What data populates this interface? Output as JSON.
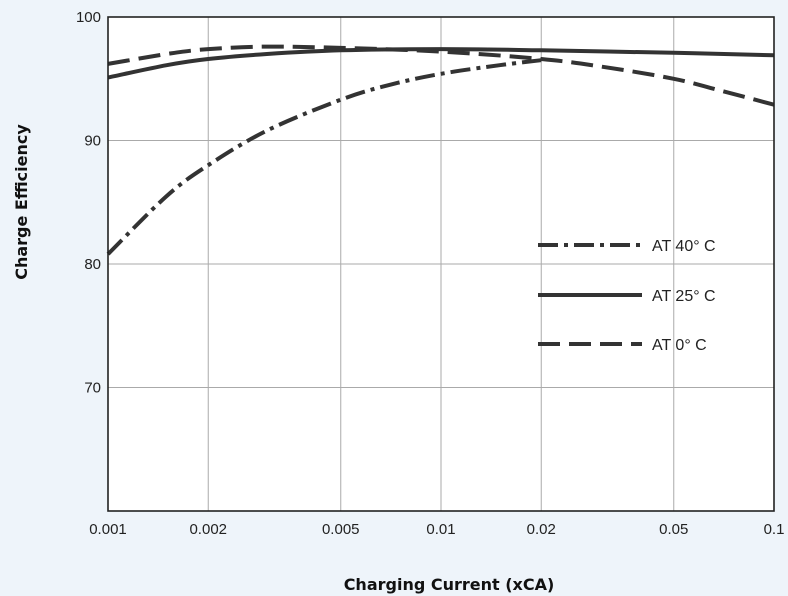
{
  "chart_data": {
    "type": "line",
    "title": "",
    "xlabel": "Charging Current (xCA)",
    "ylabel": "Charge Efficiency",
    "x_scale": "log",
    "xlim": [
      0.001,
      0.1
    ],
    "ylim": [
      60,
      100
    ],
    "x_ticks": [
      0.001,
      0.002,
      0.005,
      0.01,
      0.02,
      0.05,
      0.1
    ],
    "x_tick_labels": [
      "0.001",
      "0.002",
      "0.005",
      "0.01",
      "0.02",
      "0.05",
      "0.1"
    ],
    "y_ticks": [
      70,
      80,
      90,
      100
    ],
    "y_tick_labels": [
      "70",
      "80",
      "90",
      "100"
    ],
    "grid": true,
    "legend_position": "right",
    "series": [
      {
        "name": "AT 40° C",
        "dash": "dash-dot",
        "x": [
          0.001,
          0.0015,
          0.002,
          0.003,
          0.005,
          0.007,
          0.01,
          0.015,
          0.02
        ],
        "y": [
          80.8,
          85.5,
          88.0,
          90.8,
          93.3,
          94.5,
          95.4,
          96.1,
          96.5
        ]
      },
      {
        "name": "AT 25° C",
        "dash": "solid",
        "x": [
          0.001,
          0.0015,
          0.002,
          0.003,
          0.005,
          0.01,
          0.02,
          0.05,
          0.1
        ],
        "y": [
          95.1,
          96.1,
          96.6,
          97.0,
          97.3,
          97.4,
          97.3,
          97.1,
          96.9
        ]
      },
      {
        "name": "AT 0° C",
        "dash": "dashed",
        "x": [
          0.001,
          0.0015,
          0.002,
          0.003,
          0.005,
          0.01,
          0.02,
          0.03,
          0.05,
          0.07,
          0.1
        ],
        "y": [
          96.2,
          97.0,
          97.4,
          97.6,
          97.5,
          97.2,
          96.6,
          96.0,
          95.0,
          94.0,
          92.9
        ]
      }
    ]
  }
}
